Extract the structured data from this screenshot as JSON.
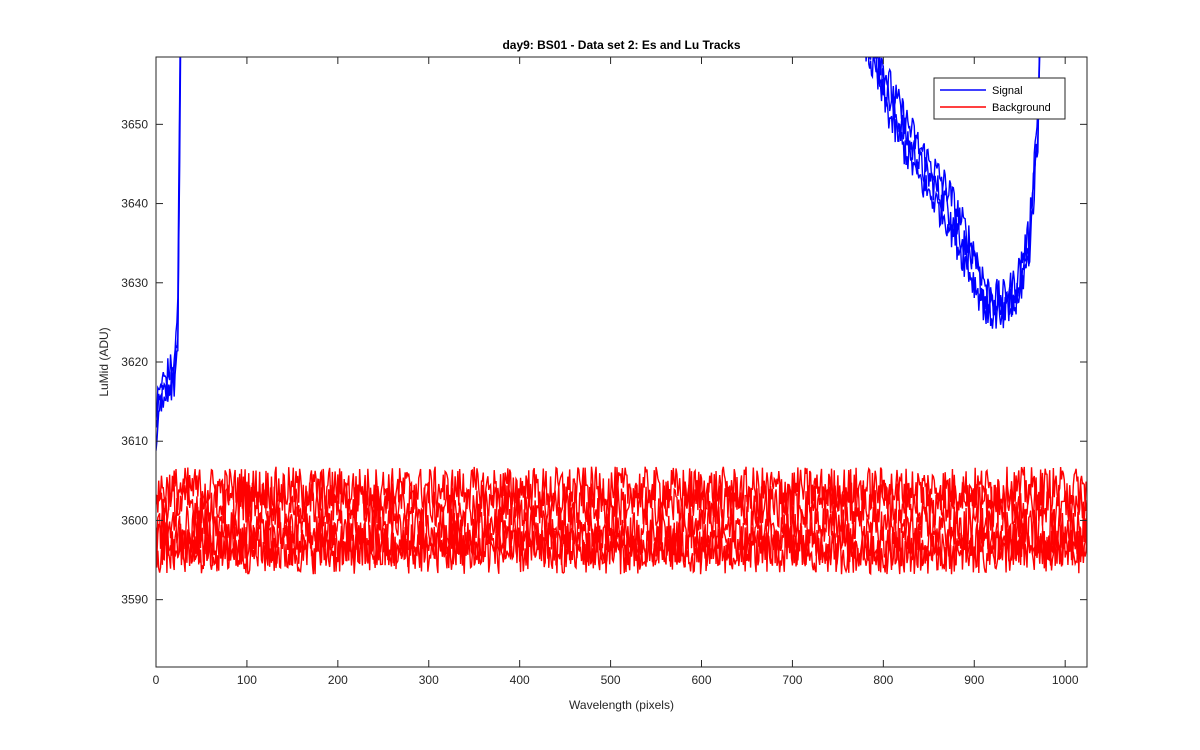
{
  "chart_data": {
    "type": "line",
    "title": "day9: BS01 - Data set 2: Es and Lu Tracks",
    "xlabel": "Wavelength (pixels)",
    "ylabel": "LuMid (ADU)",
    "xlim": [
      0,
      1024
    ],
    "ylim": [
      3581.5,
      3658.5
    ],
    "xticks": [
      0,
      100,
      200,
      300,
      400,
      500,
      600,
      700,
      800,
      900,
      1000
    ],
    "yticks": [
      3590,
      3600,
      3610,
      3620,
      3630,
      3640,
      3650
    ],
    "grid": false,
    "legend": {
      "placement": "top-right",
      "entries": [
        "Signal",
        "Background"
      ]
    },
    "colors": {
      "Signal": "#0000ff",
      "Background": "#ff0000",
      "axes": "#262626"
    },
    "series": [
      {
        "name": "Signal",
        "color": "#0000ff",
        "tracks": [
          {
            "x": [
              0,
              5,
              10,
              15,
              20,
              24,
              27,
              30,
              750,
              780,
              810,
              840,
              870,
              900,
              915,
              930,
              945,
              960,
              970,
              980
            ],
            "y": [
              3612,
              3615,
              3616,
              3617,
              3618,
              3624,
              3660,
              3700,
              3700,
              3662,
              3652,
              3645,
              3640,
              3632,
              3627,
              3626,
              3628,
              3634,
              3650,
              3700
            ]
          },
          {
            "x": [
              0,
              5,
              10,
              15,
              20,
              24,
              27,
              30,
              750,
              780,
              810,
              840,
              870,
              900,
              915,
              930,
              945,
              960,
              970,
              980
            ],
            "y": [
              3614,
              3617,
              3618,
              3619,
              3619,
              3628,
              3665,
              3700,
              3700,
              3664,
              3654,
              3647,
              3642,
              3634,
              3629,
              3628,
              3630,
              3636,
              3652,
              3700
            ]
          },
          {
            "x": [
              0,
              5,
              10,
              15,
              20,
              24,
              27,
              30,
              750,
              780,
              810,
              840,
              870,
              900,
              915,
              930,
              945,
              960,
              970,
              980
            ],
            "y": [
              3611,
              3614,
              3615,
              3616,
              3617,
              3622,
              3658,
              3700,
              3700,
              3660,
              3650,
              3643,
              3638,
              3630,
              3626,
              3626,
              3627,
              3633,
              3648,
              3700
            ]
          }
        ]
      },
      {
        "name": "Background",
        "color": "#ff0000",
        "tracks": [
          {
            "x": [
              0,
              1024
            ],
            "y": [
              3604,
              3604
            ]
          },
          {
            "x": [
              0,
              1024
            ],
            "y": [
              3602,
              3602
            ]
          },
          {
            "x": [
              0,
              1024
            ],
            "y": [
              3599,
              3599
            ]
          },
          {
            "x": [
              0,
              1024
            ],
            "y": [
              3597,
              3597
            ]
          },
          {
            "x": [
              0,
              1024
            ],
            "y": [
              3596,
              3596
            ]
          }
        ]
      }
    ]
  }
}
